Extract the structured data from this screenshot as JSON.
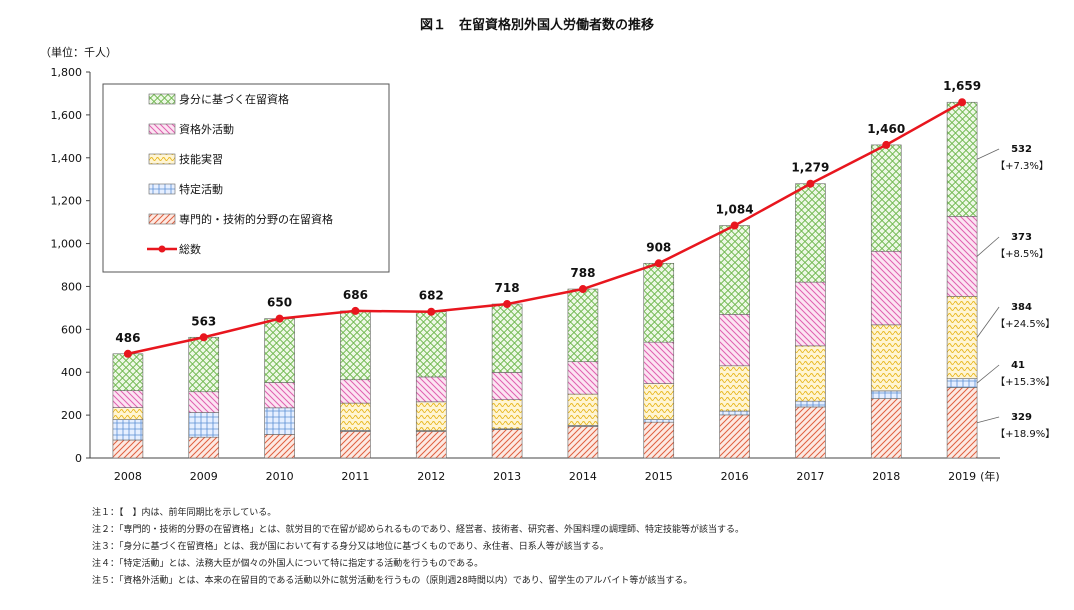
{
  "chart_data": {
    "type": "bar",
    "title": "図１　在留資格別外国人労働者数の推移",
    "unit_label": "（単位：千人）",
    "x_unit": "(年)",
    "categories": [
      "2008",
      "2009",
      "2010",
      "2011",
      "2012",
      "2013",
      "2014",
      "2015",
      "2016",
      "2017",
      "2018",
      "2019"
    ],
    "ylim": [
      0,
      1800
    ],
    "y_ticks": [
      0,
      200,
      400,
      600,
      800,
      1000,
      1200,
      1400,
      1600,
      1800
    ],
    "y_tick_labels": [
      "0",
      "200",
      "400",
      "600",
      "800",
      "1,000",
      "1,200",
      "1,400",
      "1,600",
      "1,800"
    ],
    "series": [
      {
        "name": "専門的・技術的分野の在留資格",
        "color": "#e06040",
        "pattern": "diag",
        "values": [
          84,
          97,
          110,
          124,
          124,
          132,
          147,
          167,
          201,
          238,
          277,
          329
        ]
      },
      {
        "name": "特定活動",
        "color": "#5b8fd4",
        "pattern": "check",
        "values": [
          95,
          115,
          124,
          5,
          4,
          4,
          5,
          12,
          18,
          27,
          36,
          41
        ]
      },
      {
        "name": "技能実習",
        "color": "#e8b820",
        "pattern": "wave",
        "values": [
          56,
          0,
          0,
          127,
          134,
          136,
          146,
          168,
          211,
          258,
          308,
          384
        ]
      },
      {
        "name": "資格外活動",
        "color": "#e060b0",
        "pattern": "diag2",
        "values": [
          79,
          97,
          118,
          109,
          116,
          127,
          151,
          193,
          240,
          297,
          343,
          373
        ]
      },
      {
        "name": "身分に基づく在留資格",
        "color": "#70b850",
        "pattern": "lattice",
        "values": [
          172,
          254,
          298,
          321,
          304,
          319,
          339,
          368,
          414,
          459,
          496,
          532
        ]
      }
    ],
    "line_series": {
      "name": "総数",
      "color": "#e8161e",
      "values": [
        486,
        563,
        650,
        686,
        682,
        718,
        788,
        908,
        1084,
        1279,
        1460,
        1659
      ]
    },
    "total_labels": [
      "486",
      "563",
      "650",
      "686",
      "682",
      "718",
      "788",
      "908",
      "1,084",
      "1,279",
      "1,460",
      "1,659"
    ],
    "annotations_2019": [
      {
        "value": "532",
        "change": "【+7.3%】"
      },
      {
        "value": "373",
        "change": "【+8.5%】"
      },
      {
        "value": "384",
        "change": "【+24.5%】"
      },
      {
        "value": "41",
        "change": "【+15.3%】"
      },
      {
        "value": "329",
        "change": "【+18.9%】"
      }
    ],
    "legend_order": [
      "身分に基づく在留資格",
      "資格外活動",
      "技能実習",
      "特定活動",
      "専門的・技術的分野の在留資格",
      "総数"
    ],
    "legend_position": "top-left"
  },
  "notes": [
    "注１：【　】内は、前年同期比を示している。",
    "注２：「専門的・技術的分野の在留資格」とは、就労目的で在留が認められるものであり、経営者、技術者、研究者、外国料理の調理師、特定技能等が該当する。",
    "注３：「身分に基づく在留資格」とは、我が国において有する身分又は地位に基づくものであり、永住者、日系人等が該当する。",
    "注４：「特定活動」とは、法務大臣が個々の外国人について特に指定する活動を行うものである。",
    "注５：「資格外活動」とは、本来の在留目的である活動以外に就労活動を行うもの（原則週28時間以内）であり、留学生のアルバイト等が該当する。"
  ]
}
